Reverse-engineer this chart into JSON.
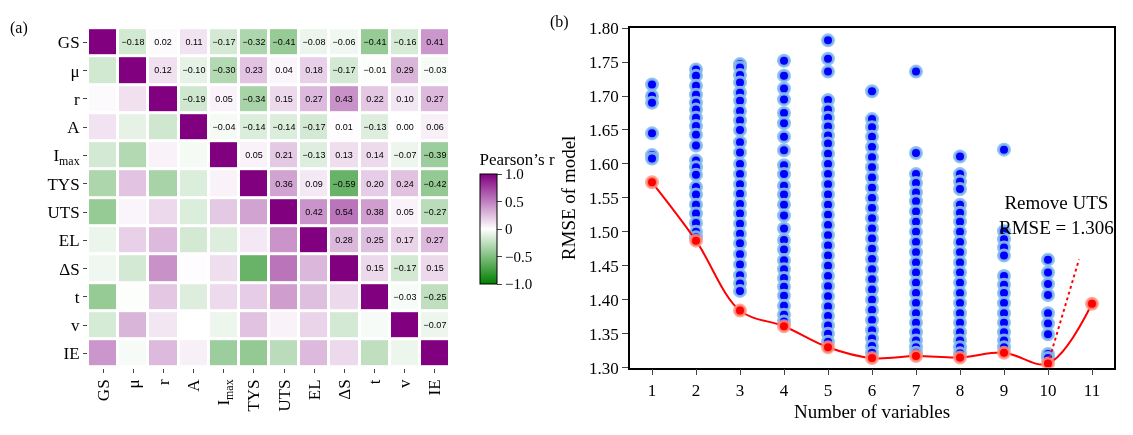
{
  "chart_data": [
    {
      "type": "heatmap",
      "title": "(a)",
      "clabel": "Pearson’s r",
      "categories": [
        "GS",
        "μ",
        "r",
        "A",
        "I$_{max}$",
        "TYS",
        "UTS",
        "EL",
        "ΔS",
        "t",
        "v",
        "IE"
      ],
      "y_categories": [
        "GS",
        "μ",
        "r",
        "A",
        "I$_{max}$",
        "TYS",
        "UTS",
        "EL",
        "ΔS",
        "t",
        "v",
        "IE"
      ],
      "cells": [
        [
          1,
          -0.18,
          0.02,
          0.11,
          -0.17,
          -0.32,
          -0.41,
          -0.08,
          -0.06,
          -0.41,
          -0.16,
          0.41
        ],
        [
          -0.18,
          1,
          0.12,
          -0.1,
          -0.3,
          0.23,
          0.04,
          0.18,
          -0.17,
          -0.01,
          0.29,
          -0.03
        ],
        [
          0.02,
          0.12,
          1,
          -0.19,
          0.05,
          -0.34,
          0.15,
          0.27,
          0.43,
          0.22,
          0.1,
          0.27
        ],
        [
          0.11,
          -0.1,
          -0.19,
          1,
          -0.04,
          -0.14,
          -0.14,
          -0.17,
          0.01,
          -0.13,
          0.0,
          0.06
        ],
        [
          -0.17,
          -0.3,
          0.05,
          -0.04,
          1,
          0.05,
          0.21,
          -0.13,
          0.13,
          0.14,
          -0.07,
          -0.39
        ],
        [
          -0.32,
          0.23,
          -0.34,
          -0.14,
          0.05,
          1,
          0.36,
          0.09,
          -0.59,
          0.2,
          0.24,
          -0.42
        ],
        [
          -0.41,
          0.04,
          0.15,
          -0.14,
          0.21,
          0.36,
          1,
          0.42,
          0.54,
          0.38,
          0.05,
          -0.27
        ],
        [
          -0.08,
          0.18,
          0.27,
          -0.17,
          -0.13,
          0.09,
          0.42,
          1,
          0.28,
          0.25,
          0.17,
          0.27
        ],
        [
          -0.06,
          -0.17,
          0.43,
          0.01,
          0.13,
          -0.59,
          0.54,
          0.28,
          1,
          0.15,
          -0.17,
          0.15
        ],
        [
          -0.41,
          -0.01,
          0.22,
          -0.13,
          0.14,
          0.2,
          0.38,
          0.25,
          0.15,
          1,
          -0.03,
          -0.25
        ],
        [
          -0.16,
          0.29,
          0.1,
          0.0,
          -0.07,
          0.24,
          0.05,
          0.17,
          -0.17,
          -0.03,
          1,
          -0.07
        ],
        [
          0.41,
          -0.03,
          0.27,
          0.06,
          -0.39,
          -0.42,
          -0.27,
          0.27,
          0.15,
          -0.25,
          -0.07,
          1
        ]
      ],
      "cell_labels": [
        [
          null,
          "−0.18",
          "0.02",
          "0.11",
          "−0.17",
          "−0.32",
          "−0.41",
          "−0.08",
          "−0.06",
          "−0.41",
          "−0.16",
          "0.41"
        ],
        [
          null,
          null,
          "0.12",
          "−0.10",
          "−0.30",
          "0.23",
          "0.04",
          "0.18",
          "−0.17",
          "−0.01",
          "0.29",
          "−0.03"
        ],
        [
          null,
          null,
          null,
          "−0.19",
          "0.05",
          "−0.34",
          "0.15",
          "0.27",
          "0.43",
          "0.22",
          "0.10",
          "0.27"
        ],
        [
          null,
          null,
          null,
          null,
          "−0.04",
          "−0.14",
          "−0.14",
          "−0.17",
          "0.01",
          "−0.13",
          "0.00",
          "0.06"
        ],
        [
          null,
          null,
          null,
          null,
          null,
          "0.05",
          "0.21",
          "−0.13",
          "0.13",
          "0.14",
          "−0.07",
          "−0.39"
        ],
        [
          null,
          null,
          null,
          null,
          null,
          null,
          "0.36",
          "0.09",
          "−0.59",
          "0.20",
          "0.24",
          "−0.42"
        ],
        [
          null,
          null,
          null,
          null,
          null,
          null,
          null,
          "0.42",
          "0.54",
          "0.38",
          "0.05",
          "−0.27"
        ],
        [
          null,
          null,
          null,
          null,
          null,
          null,
          null,
          null,
          "0.28",
          "0.25",
          "0.17",
          "0.27"
        ],
        [
          null,
          null,
          null,
          null,
          null,
          null,
          null,
          null,
          null,
          "0.15",
          "−0.17",
          "0.15"
        ],
        [
          null,
          null,
          null,
          null,
          null,
          null,
          null,
          null,
          null,
          null,
          "−0.03",
          "−0.25"
        ],
        [
          null,
          null,
          null,
          null,
          null,
          null,
          null,
          null,
          null,
          null,
          null,
          "−0.07"
        ],
        [
          null,
          null,
          null,
          null,
          null,
          null,
          null,
          null,
          null,
          null,
          null,
          null
        ]
      ],
      "clim": [
        -1,
        1
      ],
      "cticks": [
        {
          "value": -1,
          "label": "−1.0"
        },
        {
          "value": -0.5,
          "label": "−0.5"
        },
        0,
        0.5,
        {
          "value": 1,
          "label": "1.0"
        }
      ],
      "colors": [
        "#007f00",
        "#ffffff",
        "#800080"
      ]
    },
    {
      "type": "scatter",
      "title": "(b)",
      "xlabel": "Number of variables",
      "ylabel": "RMSE of model",
      "xlim": [
        0.5,
        11.5
      ],
      "xticks": [
        1,
        2,
        3,
        4,
        5,
        6,
        7,
        8,
        9,
        10,
        11
      ],
      "ylim": [
        1.3,
        1.8
      ],
      "yticks": [
        {
          "value": 1.3,
          "label": "1.30"
        },
        1.35,
        {
          "value": 1.4,
          "label": "1.40"
        },
        1.45,
        {
          "value": 1.5,
          "label": "1.50"
        },
        1.55,
        {
          "value": 1.6,
          "label": "1.60"
        },
        1.65,
        {
          "value": 1.7,
          "label": "1.70"
        },
        1.75,
        {
          "value": 1.8,
          "label": "1.80"
        }
      ],
      "annotations": [
        {
          "text": "Remove UTS\nRMSE = 1.306",
          "x": 10,
          "y": 1.306
        }
      ],
      "series": [
        {
          "type": "scatter",
          "marker": "circle",
          "color": "#0000ff",
          "x": [
            1,
            1,
            1,
            1,
            1,
            1,
            2,
            2,
            2,
            2,
            2,
            2,
            2,
            2,
            2,
            2,
            2,
            2,
            2,
            2,
            2,
            2,
            2,
            2,
            2,
            2,
            3,
            3,
            3,
            3,
            3,
            3,
            3,
            3,
            3,
            3,
            3,
            3,
            3,
            3,
            3,
            3,
            3,
            3,
            3,
            3,
            3,
            3,
            3,
            3,
            3,
            4,
            4,
            4,
            4,
            4,
            4,
            4,
            4,
            4,
            4,
            4,
            4,
            4,
            4,
            4,
            4,
            4,
            4,
            4,
            4,
            4,
            4,
            4,
            4,
            4,
            5,
            5,
            5,
            5,
            5,
            5,
            5,
            5,
            5,
            5,
            5,
            5,
            5,
            5,
            5,
            5,
            5,
            5,
            5,
            5,
            5,
            5,
            5,
            5,
            5,
            5,
            5,
            5,
            5,
            6,
            6,
            6,
            6,
            6,
            6,
            6,
            6,
            6,
            6,
            6,
            6,
            6,
            6,
            6,
            6,
            6,
            6,
            6,
            6,
            6,
            6,
            6,
            6,
            6,
            6,
            7,
            7,
            7,
            7,
            7,
            7,
            7,
            7,
            7,
            7,
            7,
            7,
            7,
            7,
            7,
            7,
            7,
            7,
            7,
            7,
            7,
            7,
            8,
            8,
            8,
            8,
            8,
            8,
            8,
            8,
            8,
            8,
            8,
            8,
            8,
            8,
            8,
            8,
            8,
            8,
            8,
            8,
            8,
            9,
            9,
            9,
            9,
            9,
            9,
            9,
            9,
            9,
            9,
            9,
            9,
            9,
            9,
            10,
            10,
            10,
            10,
            10,
            10,
            10,
            10,
            10
          ],
          "values": [
            1.717,
            1.7,
            1.69,
            1.645,
            1.613,
            1.608,
            1.739,
            1.73,
            1.715,
            1.702,
            1.69,
            1.68,
            1.668,
            1.656,
            1.643,
            1.627,
            1.605,
            1.595,
            1.584,
            1.566,
            1.555,
            1.54,
            1.527,
            1.513,
            1.5,
            1.492,
            1.747,
            1.742,
            1.731,
            1.72,
            1.705,
            1.693,
            1.678,
            1.664,
            1.65,
            1.632,
            1.617,
            1.6,
            1.585,
            1.57,
            1.556,
            1.541,
            1.527,
            1.512,
            1.497,
            1.483,
            1.467,
            1.452,
            1.436,
            1.424,
            1.413,
            1.752,
            1.73,
            1.711,
            1.695,
            1.675,
            1.66,
            1.64,
            1.62,
            1.598,
            1.585,
            1.568,
            1.555,
            1.54,
            1.524,
            1.505,
            1.488,
            1.474,
            1.458,
            1.445,
            1.432,
            1.419,
            1.406,
            1.391,
            1.378,
            1.368,
            1.782,
            1.755,
            1.736,
            1.694,
            1.68,
            1.668,
            1.655,
            1.642,
            1.63,
            1.615,
            1.6,
            1.585,
            1.57,
            1.555,
            1.54,
            1.525,
            1.51,
            1.495,
            1.48,
            1.465,
            1.45,
            1.435,
            1.42,
            1.405,
            1.39,
            1.376,
            1.362,
            1.35,
            1.338,
            1.707,
            1.666,
            1.654,
            1.64,
            1.625,
            1.61,
            1.595,
            1.58,
            1.565,
            1.55,
            1.535,
            1.52,
            1.505,
            1.49,
            1.475,
            1.46,
            1.445,
            1.43,
            1.415,
            1.4,
            1.385,
            1.37,
            1.355,
            1.343,
            1.332,
            1.322,
            1.736,
            1.616,
            1.585,
            1.572,
            1.558,
            1.545,
            1.53,
            1.515,
            1.5,
            1.485,
            1.47,
            1.455,
            1.44,
            1.425,
            1.41,
            1.395,
            1.38,
            1.366,
            1.352,
            1.34,
            1.33,
            1.322,
            1.611,
            1.585,
            1.574,
            1.563,
            1.54,
            1.528,
            1.515,
            1.5,
            1.485,
            1.47,
            1.455,
            1.44,
            1.425,
            1.41,
            1.395,
            1.38,
            1.366,
            1.352,
            1.34,
            1.33,
            1.321,
            1.621,
            1.501,
            1.489,
            1.477,
            1.465,
            1.435,
            1.422,
            1.41,
            1.395,
            1.38,
            1.366,
            1.352,
            1.34,
            1.33,
            1.459,
            1.44,
            1.423,
            1.407,
            1.38,
            1.365,
            1.349,
            1.32,
            1.314
          ]
        },
        {
          "type": "line",
          "marker": "circle",
          "line_style": "solid",
          "color": "#ff0000",
          "x": [
            1,
            2,
            3,
            4,
            5,
            6,
            7,
            8,
            9,
            10,
            11
          ],
          "values": [
            1.573,
            1.487,
            1.384,
            1.361,
            1.33,
            1.314,
            1.317,
            1.315,
            1.322,
            1.306,
            1.394
          ]
        }
      ]
    }
  ]
}
